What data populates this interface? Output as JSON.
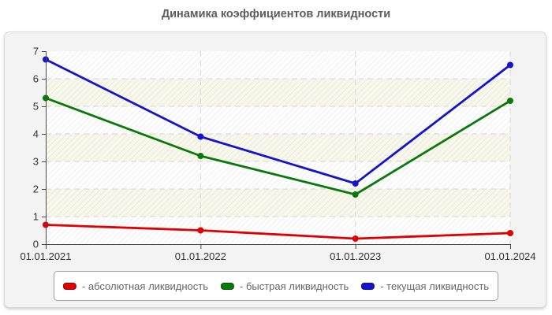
{
  "chart_data": {
    "type": "line",
    "title": "Динамика коэффициентов ликвидности",
    "x_labels": [
      "01.01.2021",
      "01.01.2022",
      "01.01.2023",
      "01.01.2024"
    ],
    "y_ticks": [
      "0",
      "1",
      "2",
      "3",
      "4",
      "5",
      "6",
      "7"
    ],
    "ylim": [
      0,
      7
    ],
    "grid": "dashed horizontal lines at integers and dashed vertical lines at dates",
    "legend_position": "bottom",
    "series": [
      {
        "name": "абсолютная ликвидность",
        "color": "#e00000",
        "values": [
          0.7,
          0.5,
          0.2,
          0.4
        ]
      },
      {
        "name": "быстрая ликвидность",
        "color": "#097909",
        "values": [
          5.3,
          3.2,
          1.8,
          5.2
        ]
      },
      {
        "name": "текущая ликвидность",
        "color": "#1414cf",
        "values": [
          6.7,
          3.9,
          2.2,
          6.5
        ]
      }
    ]
  },
  "legend": {
    "items": [
      {
        "text": "- абсолютная ликвидность"
      },
      {
        "text": "- быстрая ликвидность"
      },
      {
        "text": "- текущая ликвидность"
      }
    ]
  }
}
